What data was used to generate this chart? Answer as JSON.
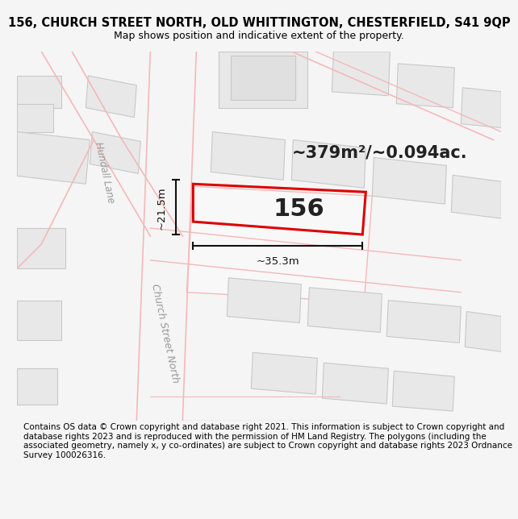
{
  "title_line1": "156, CHURCH STREET NORTH, OLD WHITTINGTON, CHESTERFIELD, S41 9QP",
  "title_line2": "Map shows position and indicative extent of the property.",
  "area_text": "~379m²/~0.094ac.",
  "property_number": "156",
  "dim_width": "~35.3m",
  "dim_height": "~21.5m",
  "street_label": "Church Street North",
  "lane_label": "Hundall Lane",
  "footer_text": "Contains OS data © Crown copyright and database right 2021. This information is subject to Crown copyright and database rights 2023 and is reproduced with the permission of HM Land Registry. The polygons (including the associated geometry, namely x, y co-ordinates) are subject to Crown copyright and database rights 2023 Ordnance Survey 100026316.",
  "bg_color": "#f5f5f5",
  "map_bg": "#ffffff",
  "building_fill": "#e8e8e8",
  "building_edge": "#c8c8c8",
  "road_fill": "#f0f0f0",
  "street_line_color": "#f5b8b8",
  "property_outline_color": "#dd0000",
  "title_fontsize": 10.5,
  "subtitle_fontsize": 9.0,
  "footer_fontsize": 7.5,
  "area_fontsize": 15,
  "number_fontsize": 22,
  "dim_fontsize": 9.5,
  "street_label_fontsize": 9,
  "lane_label_fontsize": 8.5
}
